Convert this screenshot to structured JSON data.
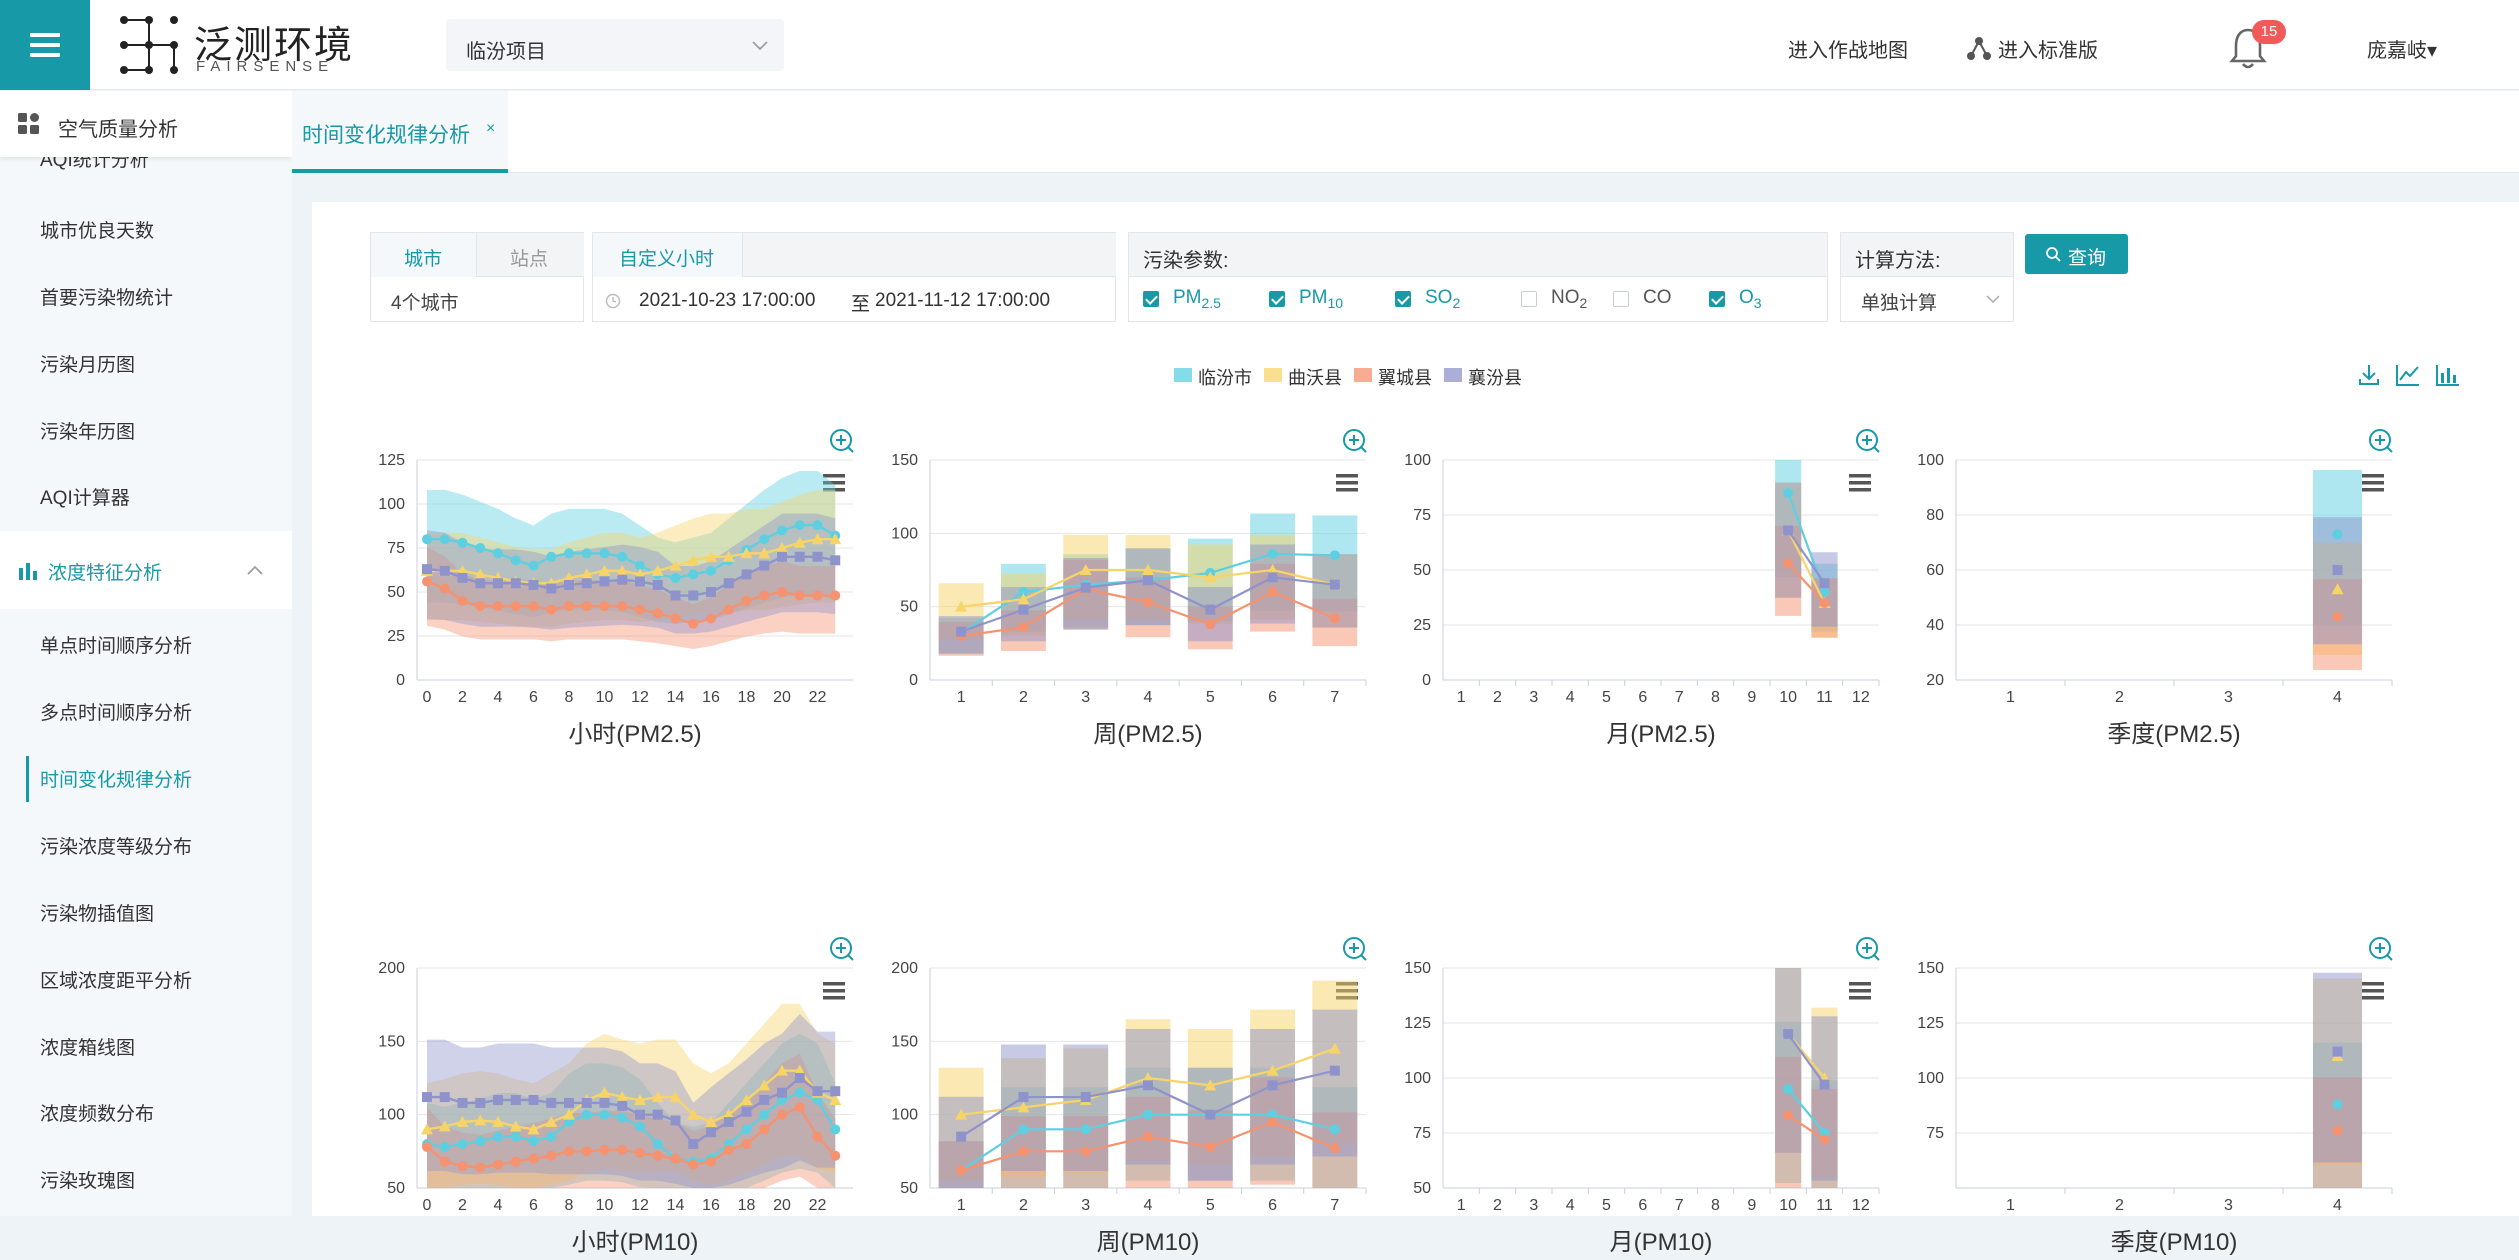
{
  "header": {
    "logo_cn": "泛测环境",
    "logo_en": "FAIRSENSE",
    "project": "临汾项目",
    "nav_map": "进入作战地图",
    "nav_standard": "进入标准版",
    "badge": "15",
    "user": "庞嘉岐▾"
  },
  "sidebar": {
    "title": "空气质量分析",
    "partial": "AQI统计分析",
    "items_a": [
      "城市优良天数",
      "首要污染物统计",
      "污染月历图",
      "污染年历图",
      "AQI计算器"
    ],
    "group": "浓度特征分析",
    "items_b": [
      "单点时间顺序分析",
      "多点时间顺序分析",
      "时间变化规律分析",
      "污染浓度等级分布",
      "污染物插值图",
      "区域浓度距平分析",
      "浓度箱线图",
      "浓度频数分布",
      "污染玫瑰图"
    ],
    "active": "时间变化规律分析"
  },
  "tab": {
    "label": "时间变化规律分析",
    "close": "×"
  },
  "filters": {
    "tab_city": "城市",
    "tab_site": "站点",
    "city_value": "4个城市",
    "time_mode": "自定义小时",
    "start": "2021-10-23 17:00:00",
    "to": "至",
    "end": "2021-11-12 17:00:00",
    "pollutant_label": "污染参数:",
    "params": [
      {
        "base": "PM",
        "sub": "2.5",
        "on": true
      },
      {
        "base": "PM",
        "sub": "10",
        "on": true
      },
      {
        "base": "SO",
        "sub": "2",
        "on": true
      },
      {
        "base": "NO",
        "sub": "2",
        "on": false
      },
      {
        "base": "CO",
        "sub": "",
        "on": false
      },
      {
        "base": "O",
        "sub": "3",
        "on": true
      }
    ],
    "method_label": "计算方法:",
    "method_value": "单独计算",
    "query": "查询"
  },
  "legend": [
    {
      "name": "临汾市",
      "color": "#5ecfe0"
    },
    {
      "name": "曲沃县",
      "color": "#f7d468"
    },
    {
      "name": "翼城县",
      "color": "#f5926f"
    },
    {
      "name": "襄汾县",
      "color": "#8f93cc"
    }
  ],
  "chart_data": [
    {
      "type": "area",
      "title": "小时(PM2.5)",
      "x": [
        0,
        1,
        2,
        3,
        4,
        5,
        6,
        7,
        8,
        9,
        10,
        11,
        12,
        13,
        14,
        15,
        16,
        17,
        18,
        19,
        20,
        21,
        22,
        23
      ],
      "ylim": [
        0,
        125
      ],
      "yticks": [
        0,
        25,
        50,
        75,
        100,
        125
      ],
      "xticks": [
        0,
        2,
        4,
        6,
        8,
        10,
        12,
        14,
        16,
        18,
        20,
        22
      ],
      "series": [
        {
          "name": "临汾市",
          "mean": [
            80,
            80,
            78,
            75,
            72,
            68,
            65,
            70,
            72,
            72,
            72,
            70,
            65,
            60,
            58,
            60,
            62,
            68,
            74,
            80,
            85,
            88,
            88,
            82
          ]
        },
        {
          "name": "曲沃县",
          "mean": [
            62,
            62,
            62,
            60,
            58,
            56,
            55,
            55,
            58,
            60,
            62,
            62,
            60,
            62,
            65,
            68,
            70,
            70,
            72,
            72,
            75,
            78,
            80,
            80
          ]
        },
        {
          "name": "翼城县",
          "mean": [
            56,
            52,
            45,
            42,
            42,
            42,
            42,
            40,
            42,
            42,
            42,
            42,
            40,
            38,
            35,
            32,
            35,
            40,
            45,
            48,
            50,
            48,
            48,
            48
          ]
        },
        {
          "name": "襄汾县",
          "mean": [
            63,
            62,
            58,
            55,
            55,
            55,
            54,
            52,
            54,
            55,
            56,
            57,
            56,
            54,
            48,
            48,
            50,
            55,
            60,
            65,
            70,
            70,
            70,
            68
          ]
        }
      ]
    },
    {
      "type": "bar",
      "title": "周(PM2.5)",
      "categories": [
        "1",
        "2",
        "3",
        "4",
        "5",
        "6",
        "7"
      ],
      "ylim": [
        0,
        150
      ],
      "yticks": [
        0,
        50,
        100,
        150
      ],
      "series": [
        {
          "name": "临汾市",
          "mean": [
            32,
            60,
            65,
            68,
            73,
            86,
            85
          ]
        },
        {
          "name": "曲沃县",
          "mean": [
            50,
            55,
            75,
            75,
            70,
            75,
            65
          ]
        },
        {
          "name": "翼城县",
          "mean": [
            30,
            36,
            62,
            53,
            38,
            60,
            42
          ]
        },
        {
          "name": "襄汾县",
          "mean": [
            33,
            48,
            63,
            68,
            48,
            70,
            65
          ]
        }
      ]
    },
    {
      "type": "bar",
      "title": "月(PM2.5)",
      "categories": [
        "1",
        "2",
        "3",
        "4",
        "5",
        "6",
        "7",
        "8",
        "9",
        "10",
        "11",
        "12"
      ],
      "ylim": [
        0,
        100
      ],
      "yticks": [
        0,
        25,
        50,
        75,
        100
      ],
      "series": [
        {
          "name": "临汾市",
          "mean": [
            null,
            null,
            null,
            null,
            null,
            null,
            null,
            null,
            null,
            85,
            40,
            null
          ]
        },
        {
          "name": "曲沃县",
          "mean": [
            null,
            null,
            null,
            null,
            null,
            null,
            null,
            null,
            null,
            68,
            35,
            null
          ]
        },
        {
          "name": "翼城县",
          "mean": [
            null,
            null,
            null,
            null,
            null,
            null,
            null,
            null,
            null,
            53,
            35,
            null
          ]
        },
        {
          "name": "襄汾县",
          "mean": [
            null,
            null,
            null,
            null,
            null,
            null,
            null,
            null,
            null,
            68,
            44,
            null
          ]
        }
      ]
    },
    {
      "type": "bar",
      "title": "季度(PM2.5)",
      "categories": [
        "1",
        "2",
        "3",
        "4"
      ],
      "ylim": [
        20,
        100
      ],
      "yticks": [
        20,
        40,
        60,
        80,
        100
      ],
      "series": [
        {
          "name": "临汾市",
          "mean": [
            null,
            null,
            null,
            73
          ]
        },
        {
          "name": "曲沃县",
          "mean": [
            null,
            null,
            null,
            53
          ]
        },
        {
          "name": "翼城县",
          "mean": [
            null,
            null,
            null,
            43
          ]
        },
        {
          "name": "襄汾县",
          "mean": [
            null,
            null,
            null,
            60
          ]
        }
      ]
    },
    {
      "type": "area",
      "title": "小时(PM10)",
      "x": [
        0,
        1,
        2,
        3,
        4,
        5,
        6,
        7,
        8,
        9,
        10,
        11,
        12,
        13,
        14,
        15,
        16,
        17,
        18,
        19,
        20,
        21,
        22,
        23
      ],
      "ylim": [
        50,
        200
      ],
      "yticks": [
        50,
        100,
        150,
        200
      ],
      "series": [
        {
          "name": "临汾市",
          "mean": [
            80,
            78,
            80,
            82,
            85,
            85,
            82,
            85,
            95,
            100,
            100,
            98,
            92,
            80,
            70,
            68,
            70,
            80,
            90,
            100,
            110,
            115,
            110,
            90
          ]
        },
        {
          "name": "曲沃县",
          "mean": [
            90,
            92,
            95,
            96,
            95,
            92,
            90,
            95,
            100,
            110,
            115,
            112,
            110,
            112,
            112,
            100,
            95,
            100,
            110,
            120,
            130,
            130,
            115,
            110
          ]
        },
        {
          "name": "翼城县",
          "mean": [
            78,
            68,
            65,
            64,
            66,
            68,
            70,
            72,
            75,
            75,
            76,
            76,
            74,
            72,
            70,
            66,
            68,
            76,
            80,
            90,
            100,
            105,
            85,
            72
          ]
        },
        {
          "name": "襄汾县",
          "mean": [
            112,
            112,
            108,
            108,
            110,
            110,
            110,
            108,
            108,
            108,
            108,
            106,
            100,
            100,
            96,
            80,
            88,
            95,
            102,
            110,
            115,
            125,
            116,
            116
          ]
        }
      ]
    },
    {
      "type": "bar",
      "title": "周(PM10)",
      "categories": [
        "1",
        "2",
        "3",
        "4",
        "5",
        "6",
        "7"
      ],
      "ylim": [
        50,
        200
      ],
      "yticks": [
        50,
        100,
        150,
        200
      ],
      "series": [
        {
          "name": "临汾市",
          "mean": [
            62,
            90,
            90,
            100,
            100,
            100,
            90
          ]
        },
        {
          "name": "曲沃县",
          "mean": [
            100,
            105,
            110,
            125,
            120,
            130,
            145
          ]
        },
        {
          "name": "翼城县",
          "mean": [
            62,
            75,
            75,
            85,
            78,
            95,
            77
          ]
        },
        {
          "name": "襄汾县",
          "mean": [
            85,
            112,
            112,
            120,
            100,
            120,
            130
          ]
        }
      ]
    },
    {
      "type": "bar",
      "title": "月(PM10)",
      "categories": [
        "1",
        "2",
        "3",
        "4",
        "5",
        "6",
        "7",
        "8",
        "9",
        "10",
        "11",
        "12"
      ],
      "ylim": [
        50,
        150
      ],
      "yticks": [
        50,
        75,
        100,
        125,
        150
      ],
      "series": [
        {
          "name": "临汾市",
          "mean": [
            null,
            null,
            null,
            null,
            null,
            null,
            null,
            null,
            null,
            95,
            75,
            null
          ]
        },
        {
          "name": "曲沃县",
          "mean": [
            null,
            null,
            null,
            null,
            null,
            null,
            null,
            null,
            null,
            120,
            100,
            null
          ]
        },
        {
          "name": "翼城县",
          "mean": [
            null,
            null,
            null,
            null,
            null,
            null,
            null,
            null,
            null,
            83,
            72,
            null
          ]
        },
        {
          "name": "襄汾县",
          "mean": [
            null,
            null,
            null,
            null,
            null,
            null,
            null,
            null,
            null,
            120,
            97,
            null
          ]
        }
      ]
    },
    {
      "type": "bar",
      "title": "季度(PM10)",
      "categories": [
        "1",
        "2",
        "3",
        "4"
      ],
      "ylim": [
        50,
        150
      ],
      "yticks": [
        75,
        100,
        125,
        150
      ],
      "series": [
        {
          "name": "临汾市",
          "mean": [
            null,
            null,
            null,
            88
          ]
        },
        {
          "name": "曲沃县",
          "mean": [
            null,
            null,
            null,
            110
          ]
        },
        {
          "name": "翼城县",
          "mean": [
            null,
            null,
            null,
            76
          ]
        },
        {
          "name": "襄汾县",
          "mean": [
            null,
            null,
            null,
            112
          ]
        }
      ]
    }
  ]
}
